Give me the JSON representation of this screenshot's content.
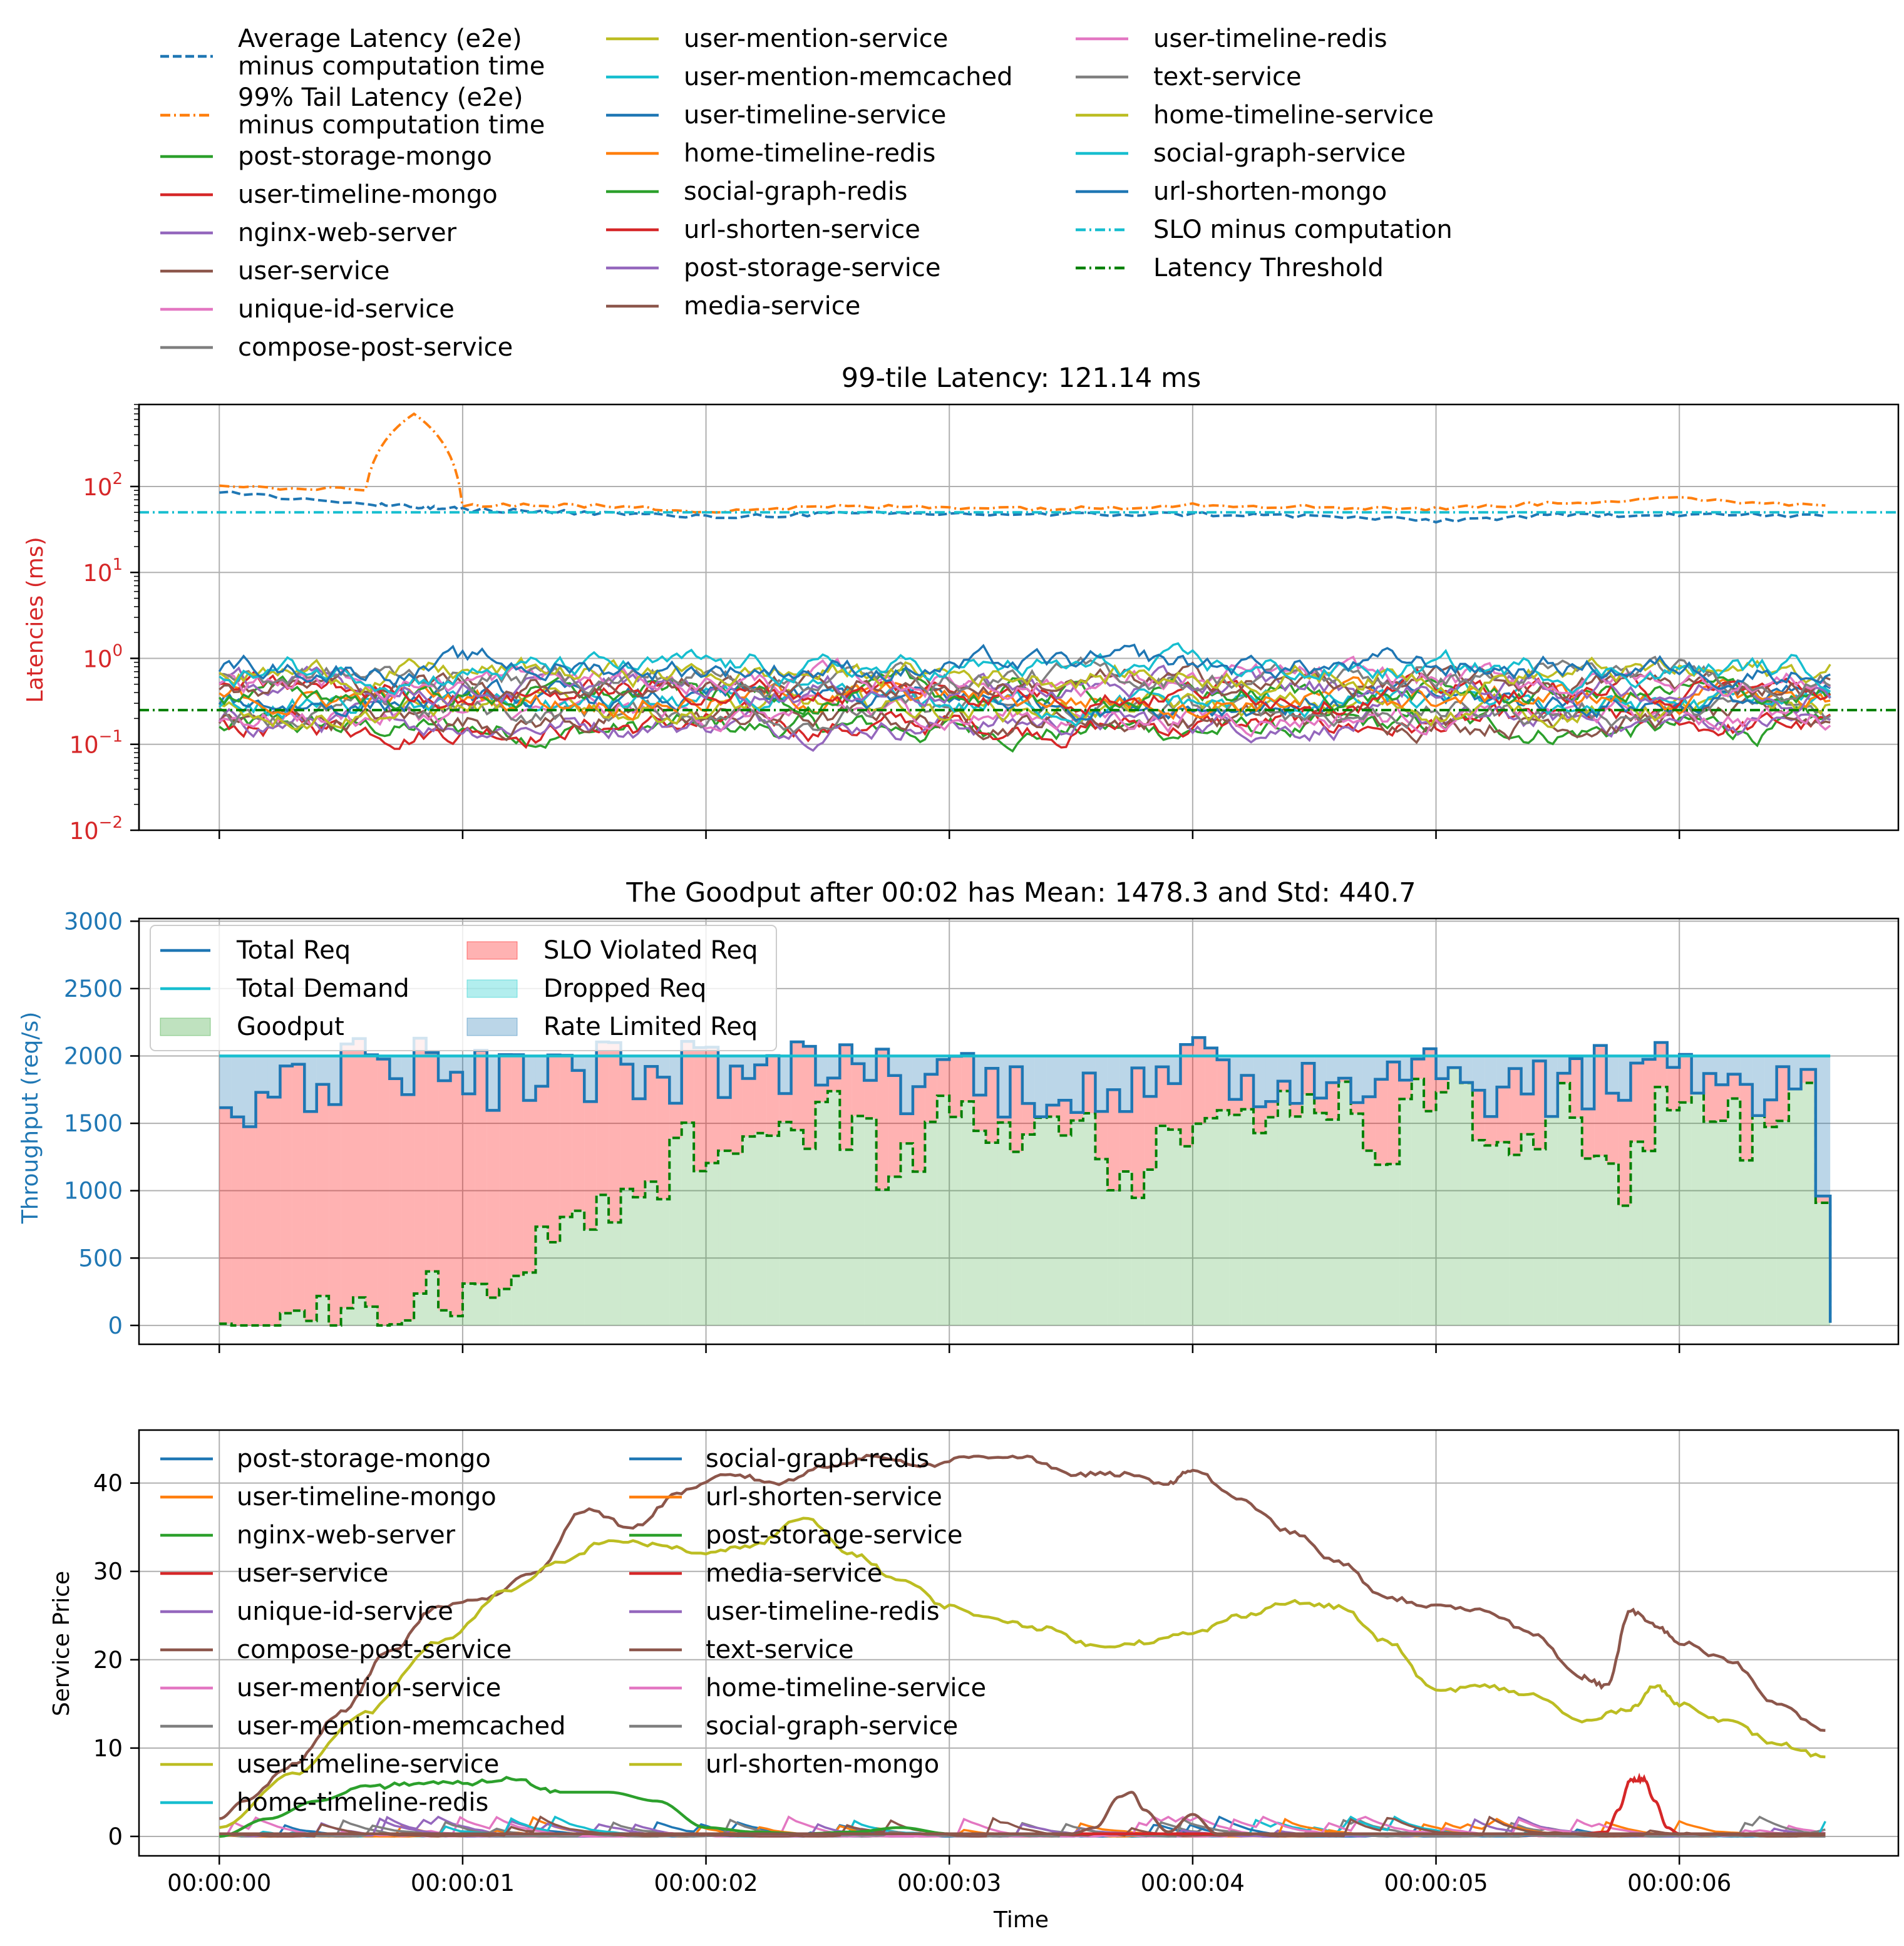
{
  "top_legend": {
    "col1": [
      {
        "label": "Average Latency (e2e)\nminus computation time",
        "color": "#1f77b4",
        "style": "dashed"
      },
      {
        "label": "99% Tail Latency (e2e)\nminus computation time",
        "color": "#ff7f0e",
        "style": "dashdot"
      },
      {
        "label": "post-storage-mongo",
        "color": "#2ca02c",
        "style": "solid"
      },
      {
        "label": "user-timeline-mongo",
        "color": "#d62728",
        "style": "solid"
      },
      {
        "label": "nginx-web-server",
        "color": "#9467bd",
        "style": "solid"
      },
      {
        "label": "user-service",
        "color": "#8c564b",
        "style": "solid"
      },
      {
        "label": "unique-id-service",
        "color": "#e377c2",
        "style": "solid"
      },
      {
        "label": "compose-post-service",
        "color": "#7f7f7f",
        "style": "solid"
      }
    ],
    "col2": [
      {
        "label": "user-mention-service",
        "color": "#bcbd22",
        "style": "solid"
      },
      {
        "label": "user-mention-memcached",
        "color": "#17becf",
        "style": "solid"
      },
      {
        "label": "user-timeline-service",
        "color": "#1f77b4",
        "style": "solid"
      },
      {
        "label": "home-timeline-redis",
        "color": "#ff7f0e",
        "style": "solid"
      },
      {
        "label": "social-graph-redis",
        "color": "#2ca02c",
        "style": "solid"
      },
      {
        "label": "url-shorten-service",
        "color": "#d62728",
        "style": "solid"
      },
      {
        "label": "post-storage-service",
        "color": "#9467bd",
        "style": "solid"
      },
      {
        "label": "media-service",
        "color": "#8c564b",
        "style": "solid"
      }
    ],
    "col3": [
      {
        "label": "user-timeline-redis",
        "color": "#e377c2",
        "style": "solid"
      },
      {
        "label": "text-service",
        "color": "#7f7f7f",
        "style": "solid"
      },
      {
        "label": "home-timeline-service",
        "color": "#bcbd22",
        "style": "solid"
      },
      {
        "label": "social-graph-service",
        "color": "#17becf",
        "style": "solid"
      },
      {
        "label": "url-shorten-mongo",
        "color": "#1f77b4",
        "style": "solid"
      },
      {
        "label": "SLO minus computation",
        "color": "#17becf",
        "style": "dashdot"
      },
      {
        "label": "Latency Threshold",
        "color": "#008000",
        "style": "dashdot"
      }
    ]
  },
  "x_ticks": [
    "00:00:00",
    "00:00:01",
    "00:00:02",
    "00:00:03",
    "00:00:04",
    "00:00:05",
    "00:00:06"
  ],
  "chart_data": [
    {
      "type": "line",
      "title": "99-tile Latency: 121.14 ms",
      "ylabel": "Latencies (ms)",
      "yscale": "log",
      "ylim": [
        0.01,
        900
      ],
      "xlim": [
        -0.33,
        6.9
      ],
      "y_ticks": [
        {
          "base": "10",
          "exp": "2",
          "value": 100
        },
        {
          "base": "10",
          "exp": "1",
          "value": 10
        },
        {
          "base": "10",
          "exp": "0",
          "value": 1
        },
        {
          "base": "10",
          "exp": "−1",
          "value": 0.1
        },
        {
          "base": "10",
          "exp": "−2",
          "value": 0.01
        }
      ],
      "grid": true,
      "x": [
        0,
        0.6,
        0.8,
        1.0,
        1.5,
        2.0,
        2.5,
        3.0,
        3.5,
        4.0,
        4.5,
        5.0,
        5.5,
        6.0,
        6.6
      ],
      "series": [
        {
          "name": "Average Latency (e2e)\nminus computation time",
          "color": "#1f77b4",
          "style": "dashed",
          "values": [
            85,
            62,
            58,
            54,
            50,
            44,
            48,
            48,
            47,
            48,
            45,
            40,
            46,
            48,
            45
          ]
        },
        {
          "name": "99% Tail Latency (e2e)\nminus computation time",
          "color": "#ff7f0e",
          "style": "dashdot",
          "values": [
            100,
            90,
            700,
            62,
            60,
            52,
            58,
            58,
            55,
            62,
            58,
            55,
            65,
            72,
            60
          ]
        },
        {
          "name": "SLO minus computation",
          "color": "#17becf",
          "style": "dashdot",
          "values": [
            50,
            50,
            50,
            50,
            50,
            50,
            50,
            50,
            50,
            50,
            50,
            50,
            50,
            50,
            50
          ]
        },
        {
          "name": "Latency Threshold",
          "color": "#008000",
          "style": "dashdot",
          "values": [
            0.25,
            0.25,
            0.25,
            0.25,
            0.25,
            0.25,
            0.25,
            0.25,
            0.25,
            0.25,
            0.25,
            0.25,
            0.25,
            0.25,
            0.25
          ]
        }
      ],
      "service_band": {
        "min": 0.08,
        "max": 1.7,
        "typical_low": 0.15,
        "typical_high": 0.8
      }
    },
    {
      "type": "area",
      "title": "The Goodput after 00:02 has Mean: 1478.3 and Std: 440.7",
      "ylabel": "Throughput (req/s)",
      "ylim": [
        -140,
        3020
      ],
      "xlim": [
        -0.33,
        6.9
      ],
      "y_ticks": [
        0,
        500,
        1000,
        1500,
        2000,
        2500,
        3000
      ],
      "grid": true,
      "legend": [
        {
          "label": "Total Req",
          "color": "#1f77b4",
          "kind": "line"
        },
        {
          "label": "Total Demand",
          "color": "#17becf",
          "kind": "line"
        },
        {
          "label": "Goodput",
          "color": "#2ca02c",
          "kind": "patch"
        },
        {
          "label": "SLO Violated Req",
          "color": "#ff0000",
          "kind": "patch"
        },
        {
          "label": "Dropped Req",
          "color": "#00c8c8",
          "kind": "patch"
        },
        {
          "label": "Rate Limited Req",
          "color": "#1f77b4",
          "kind": "patch"
        }
      ],
      "demand": 2000,
      "x": [
        0,
        0.25,
        0.5,
        0.75,
        1.0,
        1.25,
        1.5,
        1.75,
        2.0,
        2.25,
        2.5,
        2.75,
        3.0,
        3.25,
        3.5,
        3.75,
        4.0,
        4.25,
        4.5,
        4.75,
        5.0,
        5.25,
        5.5,
        5.75,
        6.0,
        6.25,
        6.5,
        6.62
      ],
      "total_req": [
        1700,
        1750,
        1900,
        1950,
        1850,
        1800,
        1900,
        1850,
        1900,
        1850,
        2050,
        1800,
        1900,
        1750,
        1800,
        1700,
        1900,
        1800,
        1850,
        1900,
        1950,
        1750,
        1800,
        1850,
        2000,
        1700,
        1900,
        20
      ],
      "goodput": [
        30,
        25,
        60,
        180,
        350,
        450,
        900,
        1000,
        1450,
        1200,
        1650,
        1100,
        1550,
        1500,
        1580,
        1000,
        1700,
        1600,
        1750,
        1300,
        1850,
        1400,
        1650,
        1000,
        1900,
        1400,
        1800,
        20
      ]
    },
    {
      "type": "line",
      "title": "",
      "xlabel": "Time",
      "ylabel": "Service Price",
      "ylim": [
        -2.2,
        46
      ],
      "xlim": [
        -0.33,
        6.9
      ],
      "y_ticks": [
        0,
        10,
        20,
        30,
        40
      ],
      "grid": true,
      "legend_col1": [
        {
          "label": "post-storage-mongo",
          "color": "#1f77b4"
        },
        {
          "label": "user-timeline-mongo",
          "color": "#ff7f0e"
        },
        {
          "label": "nginx-web-server",
          "color": "#2ca02c"
        },
        {
          "label": "user-service",
          "color": "#d62728"
        },
        {
          "label": "unique-id-service",
          "color": "#9467bd"
        },
        {
          "label": "compose-post-service",
          "color": "#8c564b"
        },
        {
          "label": "user-mention-service",
          "color": "#e377c2"
        },
        {
          "label": "user-mention-memcached",
          "color": "#7f7f7f"
        },
        {
          "label": "user-timeline-service",
          "color": "#bcbd22"
        },
        {
          "label": "home-timeline-redis",
          "color": "#17becf"
        }
      ],
      "legend_col2": [
        {
          "label": "social-graph-redis",
          "color": "#1f77b4"
        },
        {
          "label": "url-shorten-service",
          "color": "#ff7f0e"
        },
        {
          "label": "post-storage-service",
          "color": "#2ca02c"
        },
        {
          "label": "media-service",
          "color": "#d62728"
        },
        {
          "label": "user-timeline-redis",
          "color": "#9467bd"
        },
        {
          "label": "text-service",
          "color": "#8c564b"
        },
        {
          "label": "home-timeline-service",
          "color": "#e377c2"
        },
        {
          "label": "social-graph-service",
          "color": "#7f7f7f"
        },
        {
          "label": "url-shorten-mongo",
          "color": "#bcbd22"
        }
      ],
      "series": [
        {
          "name": "compose-post-service",
          "color": "#8c564b",
          "x": [
            0,
            0.1,
            0.3,
            0.5,
            0.7,
            0.9,
            1.1,
            1.3,
            1.5,
            1.7,
            1.9,
            2.1,
            2.3,
            2.5,
            2.7,
            2.9,
            3.1,
            3.3,
            3.5,
            3.7,
            3.9,
            4.0,
            4.2,
            4.4,
            4.6,
            4.8,
            5.0,
            5.2,
            5.4,
            5.6,
            5.7,
            5.8,
            5.9,
            6.0,
            6.2,
            6.4,
            6.6
          ],
          "values": [
            2,
            4,
            8,
            14,
            21,
            26,
            27,
            30,
            37,
            35,
            39,
            41,
            40,
            42,
            43,
            42,
            43,
            43,
            41,
            41,
            40,
            41.5,
            38,
            34.5,
            31,
            27,
            26,
            25.5,
            23,
            18,
            17,
            25.5,
            24,
            22,
            20,
            15,
            12
          ]
        },
        {
          "name": "url-shorten-mongo",
          "color": "#bcbd22",
          "x": [
            0,
            0.3,
            0.6,
            0.9,
            1.2,
            1.4,
            1.6,
            1.8,
            2.0,
            2.2,
            2.4,
            2.6,
            2.8,
            3.0,
            3.2,
            3.4,
            3.6,
            3.8,
            4.0,
            4.2,
            4.4,
            4.6,
            4.8,
            5.0,
            5.2,
            5.4,
            5.6,
            5.8,
            5.9,
            6.0,
            6.2,
            6.4,
            6.6
          ],
          "values": [
            1,
            7,
            14,
            22,
            28,
            31,
            33.5,
            33,
            32,
            33,
            36,
            32,
            29,
            26,
            24.5,
            23.5,
            21.5,
            22,
            23,
            25,
            26.5,
            26,
            22,
            16.5,
            17,
            16,
            13,
            14.5,
            17,
            15,
            13,
            10.5,
            9
          ]
        },
        {
          "name": "nginx-web-server",
          "color": "#2ca02c",
          "x": [
            0,
            0.2,
            0.4,
            0.6,
            0.8,
            1.0,
            1.2,
            1.4,
            1.6,
            1.8,
            2.0,
            2.2,
            2.4,
            2.6,
            2.8,
            3.0,
            6.6
          ],
          "values": [
            0,
            2,
            4,
            5.5,
            6,
            6,
            6.5,
            5,
            5,
            4,
            1,
            0.5,
            0.3,
            0.5,
            1,
            0.3,
            0.3
          ]
        },
        {
          "name": "user-service",
          "color": "#d62728",
          "x": [
            0,
            5.6,
            5.7,
            5.75,
            5.8,
            5.85,
            5.9,
            5.95,
            6.0,
            6.6
          ],
          "values": [
            0.3,
            0.3,
            0.5,
            3,
            6.5,
            6.5,
            4,
            1,
            0.3,
            0.3
          ]
        },
        {
          "name": "text-service",
          "color": "#8c564b",
          "x": [
            0,
            3.5,
            3.6,
            3.7,
            3.75,
            3.8,
            3.9,
            4.0,
            4.1,
            6.6
          ],
          "values": [
            0.3,
            0.3,
            1,
            4.5,
            5,
            3,
            0.5,
            2.5,
            0.3,
            0.3
          ]
        }
      ]
    }
  ]
}
